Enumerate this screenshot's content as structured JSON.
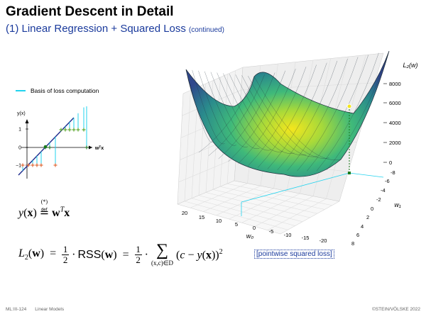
{
  "slide": {
    "title": "Gradient Descent in Detail",
    "subtitle": "(1) Linear Regression + Squared Loss",
    "subtitle_note": "(continued)"
  },
  "legend": {
    "label": "Basis of loss computation",
    "color": "#22d3ee"
  },
  "mini_plot": {
    "ylabel": "y(x)",
    "xlabel": "wᵀx",
    "yticks": [
      "1",
      "0",
      "−1"
    ]
  },
  "surface_plot": {
    "zlabel": "L₂(w)",
    "ztick_labels": [
      "8000",
      "6000",
      "4000",
      "2000",
      "0"
    ],
    "w0_label": "w₀",
    "w0_ticks": [
      "20",
      "15",
      "10",
      "5",
      "0",
      "-5",
      "-10",
      "-15",
      "-20"
    ],
    "w1_label": "w₁",
    "w1_ticks": [
      "-8",
      "-6",
      "-4",
      "-2",
      "0",
      "2",
      "4",
      "6",
      "8"
    ]
  },
  "equations": {
    "model": "y(x) ≝ wᵀx",
    "model_star": "(*)",
    "loss_lhs": "L₂(w) =",
    "rss": "RSS(w) =",
    "half_num": "1",
    "half_den": "2",
    "sum_sub": "(x,c)∈D",
    "sum_body": "(c − y(x))²"
  },
  "note": "[pointwise squared loss]",
  "footer": {
    "course": "ML:III-124",
    "chapter": "Linear Models",
    "copyright": "©STEIN/VÖLSKE 2022"
  }
}
